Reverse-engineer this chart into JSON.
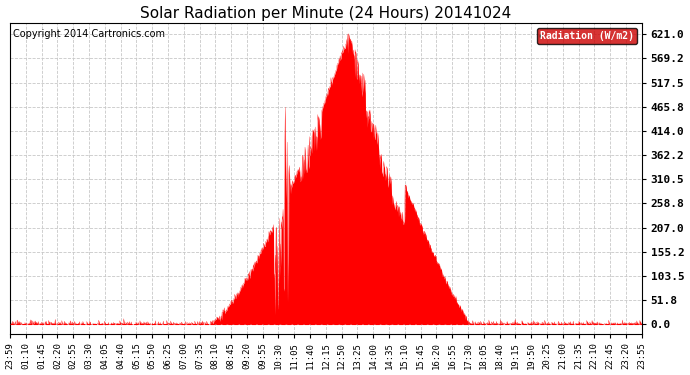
{
  "title": "Solar Radiation per Minute (24 Hours) 20141024",
  "copyright_text": "Copyright 2014 Cartronics.com",
  "legend_label": "Radiation (W/m2)",
  "y_ticks": [
    0.0,
    51.8,
    103.5,
    155.2,
    207.0,
    258.8,
    310.5,
    362.2,
    414.0,
    465.8,
    517.5,
    569.2,
    621.0
  ],
  "bar_color": "#ff0000",
  "fill_color": "#ff0000",
  "background_color": "#ffffff",
  "grid_color": "#c8c8c8",
  "title_fontsize": 11,
  "copyright_fontsize": 7,
  "x_labels": [
    "23:59",
    "01:10",
    "01:45",
    "02:20",
    "02:55",
    "03:30",
    "04:05",
    "04:40",
    "05:15",
    "05:50",
    "06:25",
    "07:00",
    "07:35",
    "08:10",
    "08:45",
    "09:20",
    "09:55",
    "10:30",
    "11:05",
    "11:40",
    "12:15",
    "12:50",
    "13:25",
    "14:00",
    "14:35",
    "15:10",
    "15:45",
    "16:20",
    "16:55",
    "17:30",
    "18:05",
    "18:40",
    "19:15",
    "19:50",
    "20:25",
    "21:00",
    "21:35",
    "22:10",
    "22:45",
    "23:20",
    "23:55"
  ],
  "zero_line_color": "#ff0000",
  "sunrise_min": 455,
  "sunset_min": 1051,
  "peak_min": 771,
  "peak_val": 621.0,
  "figsize": [
    6.9,
    3.75
  ],
  "dpi": 100
}
